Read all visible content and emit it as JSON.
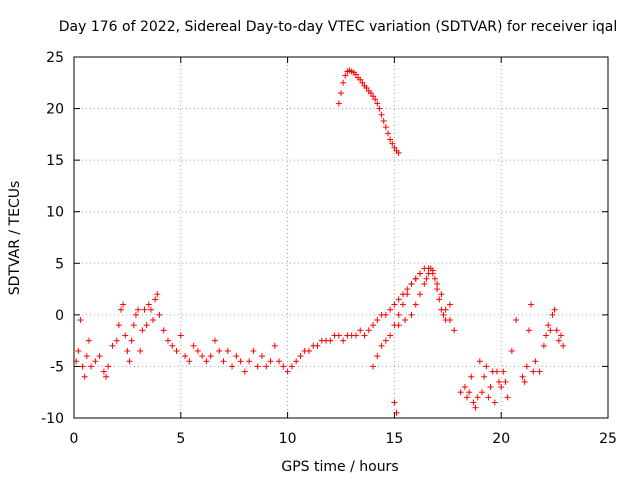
{
  "chart_data": {
    "type": "scatter",
    "title": "Day 176 of 2022, Sidereal Day-to-day VTEC variation (SDTVAR) for receiver iqal",
    "xlabel": "GPS time / hours",
    "ylabel": "SDTVAR / TECUs",
    "xlim": [
      0,
      25
    ],
    "ylim": [
      -10,
      25
    ],
    "xticks": [
      0,
      5,
      10,
      15,
      20,
      25
    ],
    "yticks": [
      -10,
      -5,
      0,
      5,
      10,
      15,
      20,
      25
    ],
    "grid": true,
    "marker": "plus",
    "color": "#ff0000",
    "series": [
      {
        "name": "SDTVAR",
        "x": [
          0.1,
          0.2,
          0.3,
          0.4,
          0.5,
          0.6,
          0.7,
          0.8,
          1.0,
          1.2,
          1.4,
          1.5,
          1.6,
          1.8,
          2.0,
          2.1,
          2.2,
          2.3,
          2.4,
          2.5,
          2.6,
          2.7,
          2.8,
          2.9,
          3.0,
          3.1,
          3.2,
          3.3,
          3.4,
          3.5,
          3.6,
          3.7,
          3.8,
          3.9,
          4.0,
          4.2,
          4.4,
          4.6,
          4.8,
          5.0,
          5.2,
          5.4,
          5.6,
          5.8,
          6.0,
          6.2,
          6.4,
          6.6,
          6.8,
          7.0,
          7.2,
          7.4,
          7.6,
          7.8,
          8.0,
          8.2,
          8.4,
          8.6,
          8.8,
          9.0,
          9.2,
          9.4,
          9.6,
          9.8,
          10.0,
          10.2,
          10.4,
          10.6,
          10.8,
          11.0,
          11.2,
          11.4,
          11.6,
          11.8,
          12.0,
          12.2,
          12.4,
          12.6,
          12.8,
          13.0,
          13.2,
          13.4,
          13.6,
          13.8,
          14.0,
          14.2,
          14.4,
          14.6,
          14.8,
          15.0,
          15.2,
          15.4,
          15.6,
          15.8,
          16.0,
          16.2,
          16.4,
          16.6,
          16.8,
          17.0,
          17.2,
          17.4,
          17.6,
          12.4,
          12.5,
          12.6,
          12.7,
          12.8,
          12.9,
          13.0,
          13.1,
          13.2,
          13.3,
          13.4,
          13.5,
          13.6,
          13.7,
          13.8,
          13.9,
          14.0,
          14.1,
          14.2,
          14.3,
          14.4,
          14.5,
          14.6,
          14.7,
          14.8,
          14.9,
          15.0,
          15.1,
          15.2,
          14.0,
          14.2,
          14.4,
          14.6,
          14.8,
          15.0,
          15.2,
          15.4,
          15.6,
          15.8,
          16.0,
          16.2,
          15.2,
          15.5,
          15.8,
          16.0,
          16.2,
          16.4,
          16.5,
          16.6,
          16.7,
          16.8,
          16.9,
          17.0,
          17.1,
          17.2,
          17.3,
          17.4,
          17.6,
          17.8,
          15.0,
          15.1,
          18.1,
          18.3,
          18.4,
          18.5,
          18.6,
          18.7,
          18.8,
          18.9,
          19.0,
          19.1,
          19.2,
          19.3,
          19.4,
          19.5,
          19.6,
          19.7,
          19.8,
          19.9,
          20.0,
          20.1,
          20.2,
          20.3,
          20.5,
          20.7,
          21.0,
          21.1,
          21.2,
          21.3,
          21.4,
          21.5,
          21.6,
          21.8,
          22.0,
          22.1,
          22.2,
          22.3,
          22.4,
          22.5,
          22.6,
          22.7,
          22.8,
          22.9
        ],
        "y": [
          -4.5,
          -3.5,
          -0.5,
          -5.0,
          -6.0,
          -4.0,
          -2.5,
          -5.0,
          -4.5,
          -4.0,
          -5.5,
          -6.0,
          -5.0,
          -3.0,
          -2.5,
          -1.0,
          0.5,
          1.0,
          -2.0,
          -3.5,
          -4.5,
          -2.5,
          -1.0,
          0.0,
          0.5,
          -3.5,
          -1.5,
          0.5,
          -1.0,
          1.0,
          0.5,
          -0.5,
          1.5,
          2.0,
          0.0,
          -1.5,
          -2.5,
          -3.0,
          -3.5,
          -2.0,
          -4.0,
          -4.5,
          -3.0,
          -3.5,
          -4.0,
          -4.5,
          -4.0,
          -2.5,
          -3.5,
          -4.5,
          -3.5,
          -5.0,
          -4.0,
          -4.5,
          -5.5,
          -4.5,
          -3.5,
          -5.0,
          -4.0,
          -5.0,
          -4.5,
          -3.0,
          -4.5,
          -5.0,
          -5.5,
          -5.0,
          -4.5,
          -4.0,
          -3.5,
          -3.5,
          -3.0,
          -3.0,
          -2.5,
          -2.5,
          -2.5,
          -2.0,
          -2.0,
          -2.5,
          -2.0,
          -2.0,
          -2.0,
          -1.5,
          -2.0,
          -1.5,
          -1.0,
          -0.5,
          0.0,
          0.0,
          0.5,
          1.0,
          1.5,
          2.0,
          2.5,
          3.0,
          3.5,
          4.0,
          4.5,
          4.5,
          4.0,
          3.0,
          2.0,
          0.5,
          1.0,
          20.5,
          21.5,
          22.5,
          23.2,
          23.6,
          23.7,
          23.6,
          23.5,
          23.3,
          23.0,
          22.8,
          22.5,
          22.2,
          22.0,
          21.7,
          21.5,
          21.2,
          20.9,
          20.5,
          20.0,
          19.4,
          18.8,
          18.2,
          17.6,
          17.0,
          16.6,
          16.2,
          15.9,
          15.7,
          -5.0,
          -4.0,
          -3.0,
          -2.5,
          -2.0,
          -1.0,
          0.0,
          1.0,
          2.0,
          3.0,
          3.5,
          4.0,
          -1.0,
          -0.5,
          0.0,
          1.0,
          2.0,
          3.0,
          3.5,
          4.0,
          4.5,
          4.3,
          3.5,
          2.5,
          1.5,
          0.5,
          0.0,
          -0.5,
          -0.5,
          -1.5,
          -8.5,
          -9.5,
          -7.5,
          -7.0,
          -8.0,
          -7.5,
          -6.0,
          -8.5,
          -9.0,
          -8.0,
          -4.5,
          -7.5,
          -6.0,
          -5.0,
          -8.0,
          -7.0,
          -5.5,
          -8.5,
          -5.5,
          -6.5,
          -7.0,
          -5.5,
          -6.5,
          -8.0,
          -3.5,
          -0.5,
          -6.0,
          -6.5,
          -5.0,
          -1.5,
          1.0,
          -5.5,
          -4.5,
          -5.5,
          -3.0,
          -2.0,
          -1.0,
          -1.5,
          0.0,
          0.5,
          -1.5,
          -2.5,
          -2.0,
          -3.0
        ]
      }
    ]
  }
}
